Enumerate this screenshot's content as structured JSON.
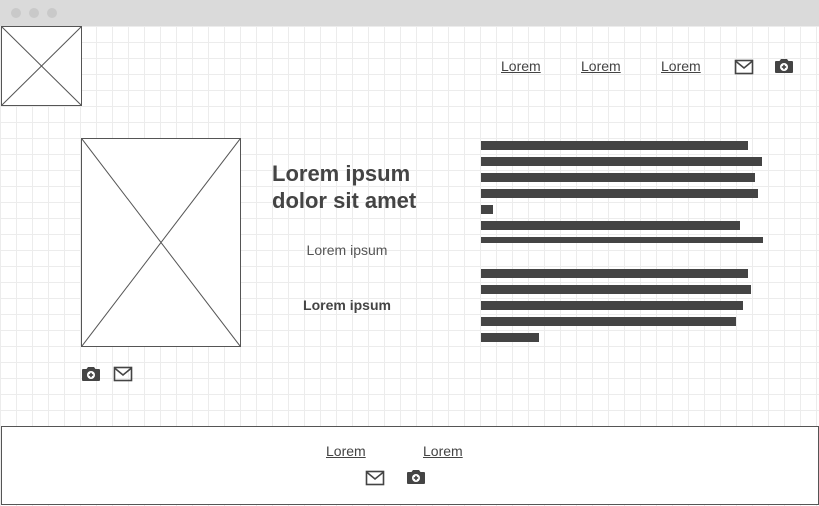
{
  "window": {
    "chrome_dots": 3
  },
  "header": {
    "nav_links": [
      "Lorem",
      "Lorem",
      "Lorem"
    ],
    "icons": [
      "mail-icon",
      "camera-icon"
    ]
  },
  "hero": {
    "headline": "Lorem ipsum dolor sit amet",
    "subtext": "Lorem ipsum",
    "bold_text": "Lorem ipsum",
    "icons": [
      "camera-icon",
      "mail-icon"
    ]
  },
  "text_block": {
    "paragraph_count": 2,
    "lines_per_paragraph": [
      7,
      5
    ]
  },
  "footer": {
    "links": [
      "Lorem",
      "Lorem"
    ],
    "icons": [
      "mail-icon",
      "camera-icon"
    ]
  },
  "colors": {
    "ink": "#444444",
    "grid": "#ececec",
    "titlebar": "#dadada"
  }
}
